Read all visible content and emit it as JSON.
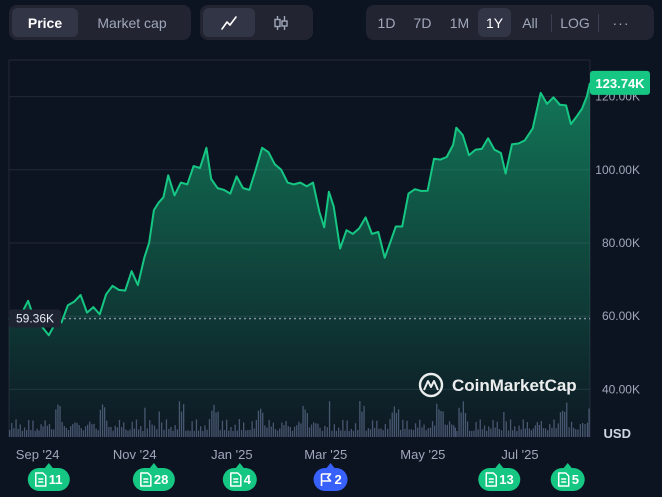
{
  "toolbar": {
    "metric_tabs": [
      {
        "label": "Price",
        "active": true
      },
      {
        "label": "Market cap",
        "active": false
      }
    ],
    "chart_modes": [
      {
        "icon": "line-chart-icon",
        "active": true
      },
      {
        "icon": "candlestick-icon",
        "active": false
      }
    ],
    "ranges": [
      {
        "label": "1D",
        "active": false
      },
      {
        "label": "7D",
        "active": false
      },
      {
        "label": "1M",
        "active": false
      },
      {
        "label": "1Y",
        "active": true
      },
      {
        "label": "All",
        "active": false
      }
    ],
    "log_label": "LOG",
    "more_label": "···"
  },
  "watermark": "CoinMarketCap",
  "colors": {
    "background": "#0d1421",
    "line": "#16c784",
    "price_badge": "#16c784",
    "start_badge": "#1f2433",
    "volume": "#4a5370",
    "news_badge": "#16c784",
    "event_badge": "#3861fb"
  },
  "chart_data": {
    "type": "area",
    "ylim": [
      27000,
      130000
    ],
    "y_ticks": [
      40000,
      60000,
      80000,
      100000,
      120000
    ],
    "y_tick_labels": [
      "40.00K",
      "60.00K",
      "80.00K",
      "100.00K",
      "120.00K"
    ],
    "volume_unit_label": "USD",
    "x_ticks": [
      {
        "date": "2024-09-01",
        "label": "Sep '24"
      },
      {
        "date": "2024-11-01",
        "label": "Nov '24"
      },
      {
        "date": "2025-01-01",
        "label": "Jan '25"
      },
      {
        "date": "2025-03-01",
        "label": "Mar '25"
      },
      {
        "date": "2025-05-01",
        "label": "May '25"
      },
      {
        "date": "2025-07-01",
        "label": "Jul '25"
      }
    ],
    "start_value": 59360,
    "start_label": "59.36K",
    "current_value": 123740,
    "current_label": "123.74K",
    "series": [
      {
        "values": [
          [
            "2024-08-14",
            59400
          ],
          [
            "2024-08-18",
            58500
          ],
          [
            "2024-08-22",
            60800
          ],
          [
            "2024-08-26",
            64200
          ],
          [
            "2024-08-30",
            59100
          ],
          [
            "2024-09-04",
            57000
          ],
          [
            "2024-09-08",
            54800
          ],
          [
            "2024-09-12",
            58000
          ],
          [
            "2024-09-16",
            58300
          ],
          [
            "2024-09-20",
            63000
          ],
          [
            "2024-09-24",
            64000
          ],
          [
            "2024-09-28",
            65800
          ],
          [
            "2024-10-02",
            61000
          ],
          [
            "2024-10-06",
            62500
          ],
          [
            "2024-10-10",
            60500
          ],
          [
            "2024-10-14",
            66000
          ],
          [
            "2024-10-18",
            68300
          ],
          [
            "2024-10-22",
            67200
          ],
          [
            "2024-10-26",
            67000
          ],
          [
            "2024-10-30",
            72300
          ],
          [
            "2024-11-03",
            68500
          ],
          [
            "2024-11-07",
            76000
          ],
          [
            "2024-11-10",
            80000
          ],
          [
            "2024-11-13",
            89000
          ],
          [
            "2024-11-16",
            91000
          ],
          [
            "2024-11-19",
            92500
          ],
          [
            "2024-11-22",
            98500
          ],
          [
            "2024-11-26",
            93000
          ],
          [
            "2024-11-30",
            96500
          ],
          [
            "2024-12-04",
            96000
          ],
          [
            "2024-12-08",
            101000
          ],
          [
            "2024-12-12",
            100500
          ],
          [
            "2024-12-16",
            106000
          ],
          [
            "2024-12-19",
            97500
          ],
          [
            "2024-12-23",
            95000
          ],
          [
            "2024-12-27",
            94500
          ],
          [
            "2024-12-31",
            93500
          ],
          [
            "2025-01-04",
            98200
          ],
          [
            "2025-01-08",
            95000
          ],
          [
            "2025-01-12",
            94500
          ],
          [
            "2025-01-16",
            100000
          ],
          [
            "2025-01-20",
            106000
          ],
          [
            "2025-01-24",
            104800
          ],
          [
            "2025-01-28",
            101500
          ],
          [
            "2025-02-01",
            100000
          ],
          [
            "2025-02-05",
            96500
          ],
          [
            "2025-02-09",
            96000
          ],
          [
            "2025-02-13",
            96500
          ],
          [
            "2025-02-17",
            95500
          ],
          [
            "2025-02-21",
            96500
          ],
          [
            "2025-02-25",
            88500
          ],
          [
            "2025-02-28",
            84300
          ],
          [
            "2025-03-03",
            94000
          ],
          [
            "2025-03-06",
            90000
          ],
          [
            "2025-03-10",
            78500
          ],
          [
            "2025-03-14",
            83500
          ],
          [
            "2025-03-18",
            82500
          ],
          [
            "2025-03-22",
            84000
          ],
          [
            "2025-03-26",
            87000
          ],
          [
            "2025-03-30",
            82500
          ],
          [
            "2025-04-03",
            83000
          ],
          [
            "2025-04-07",
            76000
          ],
          [
            "2025-04-10",
            79500
          ],
          [
            "2025-04-14",
            84500
          ],
          [
            "2025-04-18",
            84500
          ],
          [
            "2025-04-22",
            93500
          ],
          [
            "2025-04-26",
            94700
          ],
          [
            "2025-04-30",
            94200
          ],
          [
            "2025-05-04",
            94300
          ],
          [
            "2025-05-08",
            103000
          ],
          [
            "2025-05-12",
            102800
          ],
          [
            "2025-05-16",
            103500
          ],
          [
            "2025-05-20",
            106800
          ],
          [
            "2025-05-22",
            111500
          ],
          [
            "2025-05-26",
            109500
          ],
          [
            "2025-05-30",
            104000
          ],
          [
            "2025-06-03",
            105500
          ],
          [
            "2025-06-07",
            105700
          ],
          [
            "2025-06-11",
            108600
          ],
          [
            "2025-06-15",
            105500
          ],
          [
            "2025-06-19",
            104600
          ],
          [
            "2025-06-22",
            99000
          ],
          [
            "2025-06-26",
            107000
          ],
          [
            "2025-06-30",
            107200
          ],
          [
            "2025-07-04",
            108000
          ],
          [
            "2025-07-09",
            111300
          ],
          [
            "2025-07-14",
            121000
          ],
          [
            "2025-07-18",
            118000
          ],
          [
            "2025-07-22",
            119800
          ],
          [
            "2025-07-26",
            117800
          ],
          [
            "2025-07-30",
            117600
          ],
          [
            "2025-08-02",
            112500
          ],
          [
            "2025-08-06",
            114800
          ],
          [
            "2025-08-09",
            116700
          ],
          [
            "2025-08-12",
            120000
          ],
          [
            "2025-08-14",
            123740
          ]
        ]
      }
    ],
    "event_badges": [
      {
        "date": "2024-09-08",
        "count": "11",
        "kind": "news"
      },
      {
        "date": "2024-11-13",
        "count": "28",
        "kind": "news"
      },
      {
        "date": "2025-01-06",
        "count": "4",
        "kind": "news"
      },
      {
        "date": "2025-03-04",
        "count": "2",
        "kind": "event"
      },
      {
        "date": "2025-06-18",
        "count": "13",
        "kind": "news"
      },
      {
        "date": "2025-07-31",
        "count": "5",
        "kind": "news"
      }
    ]
  }
}
